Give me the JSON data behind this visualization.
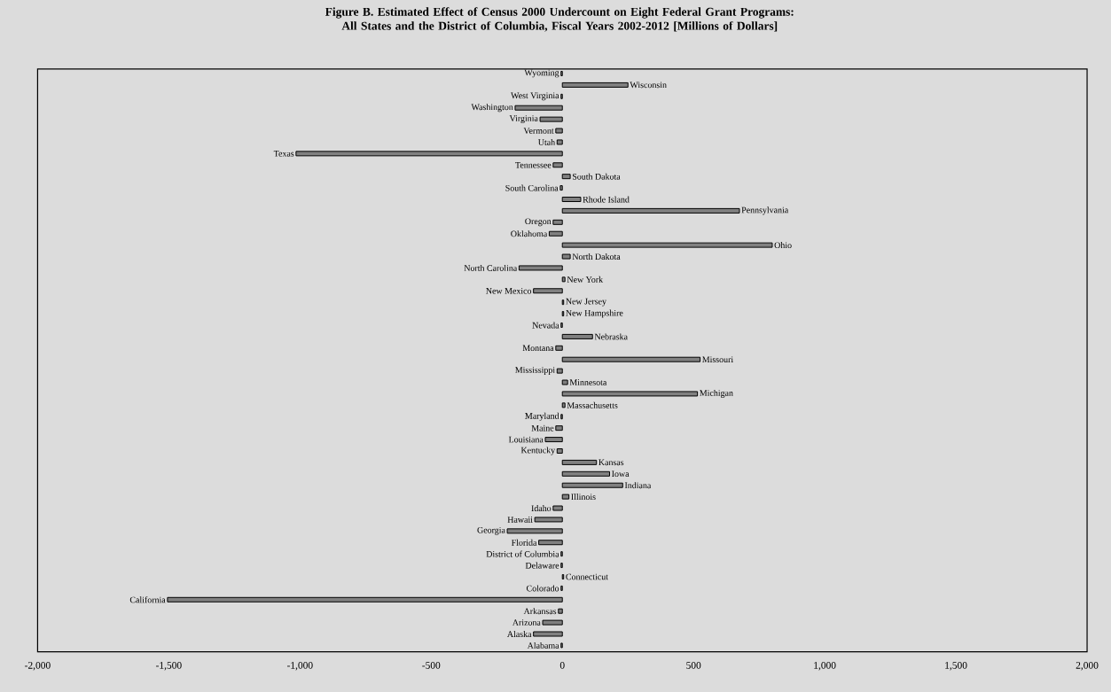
{
  "chart_data": {
    "type": "bar",
    "orientation": "horizontal",
    "title": "Figure B.  Estimated  Effect of Census 2000 Undercount on  Eight Federal Grant Programs: All States and the District of Columbia, Fiscal Years 2002-2012 [Millions of Dollars]",
    "categories": [
      "Wyoming",
      "Wisconsin",
      "West Virginia",
      "Washington",
      "Virginia",
      "Vermont",
      "Utah",
      "Texas",
      "Tennessee",
      "South Dakota",
      "South Carolina",
      "Rhode Island",
      "Pennsylvania",
      "Oregon",
      "Oklahoma",
      "Ohio",
      "North Dakota",
      "North Carolina",
      "New York",
      "New Mexico",
      "New Jersey",
      "New Hampshire",
      "Nevada",
      "Nebraska",
      "Montana",
      "Missouri",
      "Mississippi",
      "Minnesota",
      "Michigan",
      "Massachusetts",
      "Maryland",
      "Maine",
      "Louisiana",
      "Kentucky",
      "Kansas",
      "Iowa",
      "Indiana",
      "Illinois",
      "Idaho",
      "Hawaii",
      "Georgia",
      "Florida",
      "District of Columbia",
      "Delaware",
      "Connecticut",
      "Colorado",
      "California",
      "Arkansas",
      "Arizona",
      "Alaska",
      "Alabama"
    ],
    "values": [
      -5,
      250,
      -5,
      -180,
      -85,
      -25,
      -20,
      -1015,
      -35,
      30,
      -8,
      70,
      675,
      -35,
      -50,
      800,
      30,
      -165,
      10,
      -110,
      5,
      5,
      -5,
      115,
      -25,
      525,
      -20,
      20,
      515,
      10,
      -5,
      -25,
      -65,
      -20,
      130,
      180,
      230,
      25,
      -35,
      -105,
      -210,
      -90,
      -5,
      -5,
      5,
      -5,
      -1505,
      -15,
      -75,
      -110,
      -5
    ],
    "color": "#808080",
    "xlim": [
      -2000,
      2000
    ],
    "xticks": [
      {
        "value": -2000,
        "label": "-2,000"
      },
      {
        "value": -1500,
        "label": "-1,500"
      },
      {
        "value": -1000,
        "label": "-1,000"
      },
      -500,
      0,
      500,
      {
        "value": 1000,
        "label": "1,000"
      },
      {
        "value": 1500,
        "label": "1,500"
      },
      {
        "value": 2000,
        "label": "2,000"
      }
    ],
    "grid": false
  }
}
